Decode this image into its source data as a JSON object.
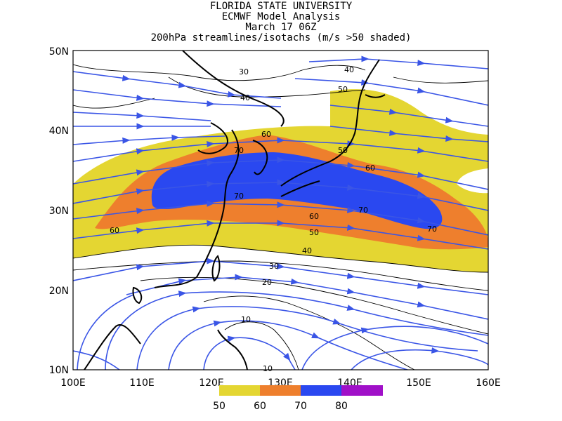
{
  "titles": [
    "FLORIDA STATE UNIVERSITY",
    "ECMWF Model Analysis",
    "March 17 06Z",
    "200hPa streamlines/isotachs (m/s >50 shaded)"
  ],
  "axes": {
    "lon_labels": [
      "100E",
      "110E",
      "120E",
      "130E",
      "140E",
      "150E",
      "160E"
    ],
    "lat_labels": [
      "10N",
      "20N",
      "30N",
      "40N",
      "50N"
    ]
  },
  "contour_labels": [
    "30",
    "40",
    "40",
    "50",
    "50",
    "60",
    "60",
    "70",
    "70",
    "70",
    "60",
    "50",
    "60",
    "70",
    "40",
    "30",
    "20",
    "10",
    "10",
    "50",
    "60"
  ],
  "colorbar": {
    "colors": [
      "#e4d632",
      "#ee7f2d",
      "#2a48f0",
      "#a010c8"
    ],
    "labels": [
      "50",
      "60",
      "70",
      "80"
    ]
  },
  "colors": {
    "shade_50": "#e4d632",
    "shade_60": "#ee7f2d",
    "shade_70": "#2a48f0",
    "streamline": "#3a55e6"
  }
}
